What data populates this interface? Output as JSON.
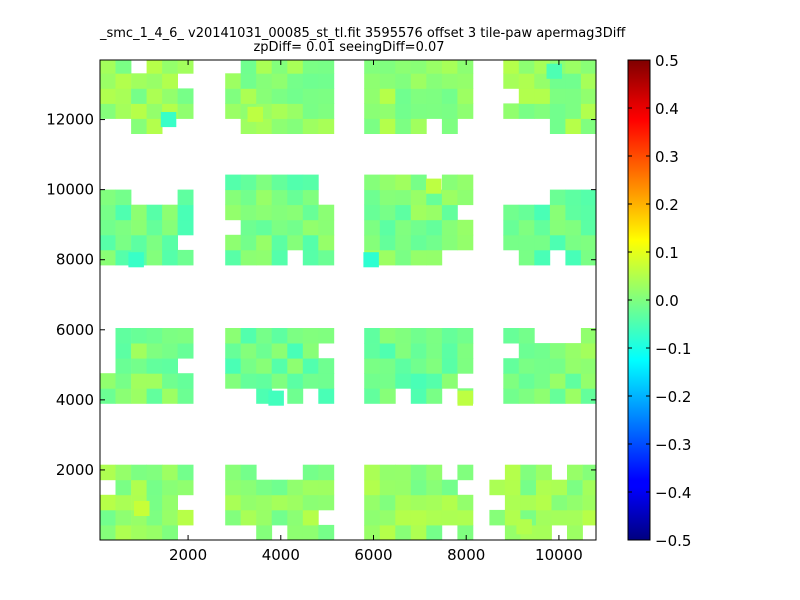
{
  "chart_data": {
    "type": "heatmap",
    "title_line1": "_smc_1_4_6_ v20141031_00085_st_tl.fit 3595576 offset 3 tile-paw apermag3Diff",
    "title_line2": "zpDiff= 0.01 seeingDiff=0.07",
    "xlim": [
      100,
      10800
    ],
    "ylim": [
      0,
      13700
    ],
    "x_ticks": [
      2000,
      4000,
      6000,
      8000,
      10000
    ],
    "y_ticks": [
      2000,
      4000,
      6000,
      8000,
      10000,
      12000
    ],
    "colorbar": {
      "colormap": "jet",
      "vmin": -0.5,
      "vmax": 0.5,
      "ticks": [
        "0.5",
        "0.4",
        "0.3",
        "0.2",
        "0.1",
        "0.0",
        "−0.1",
        "−0.2",
        "−0.3",
        "−0.4",
        "−0.5"
      ]
    },
    "cell_size": [
      335,
      430
    ],
    "grid": false,
    "blocks": [
      {
        "name": "col1-row1",
        "x0": 100,
        "x1": 2110,
        "y0": 0,
        "y1": 2200,
        "base": 0.02
      },
      {
        "name": "col2-row1",
        "x0": 2800,
        "x1": 5140,
        "y0": 0,
        "y1": 2200,
        "base": 0.02
      },
      {
        "name": "col3-row1",
        "x0": 5800,
        "x1": 8140,
        "y0": 0,
        "y1": 2200,
        "base": 0.02
      },
      {
        "name": "col4-row1",
        "x0": 8500,
        "x1": 10800,
        "y0": 0,
        "y1": 2200,
        "base": 0.02
      },
      {
        "name": "col1-row2",
        "x0": 100,
        "x1": 2110,
        "y0": 3900,
        "y1": 6100,
        "base": 0.0
      },
      {
        "name": "col2-row2",
        "x0": 2800,
        "x1": 5140,
        "y0": 3900,
        "y1": 6100,
        "base": -0.02
      },
      {
        "name": "col3-row2",
        "x0": 5800,
        "x1": 8140,
        "y0": 3900,
        "y1": 6100,
        "base": -0.02
      },
      {
        "name": "col4-row2",
        "x0": 8800,
        "x1": 10800,
        "y0": 3900,
        "y1": 6100,
        "base": 0.0
      },
      {
        "name": "col1-row3",
        "x0": 100,
        "x1": 2110,
        "y0": 7850,
        "y1": 9950,
        "base": -0.02
      },
      {
        "name": "col2-row3",
        "x0": 2800,
        "x1": 5140,
        "y0": 7850,
        "y1": 10300,
        "base": -0.01
      },
      {
        "name": "col3-row3",
        "x0": 5800,
        "x1": 8140,
        "y0": 7850,
        "y1": 10300,
        "base": 0.0
      },
      {
        "name": "col4-row3",
        "x0": 8800,
        "x1": 10800,
        "y0": 7850,
        "y1": 9950,
        "base": -0.02
      },
      {
        "name": "col1-row4",
        "x0": 100,
        "x1": 2110,
        "y0": 11600,
        "y1": 13700,
        "base": 0.02
      },
      {
        "name": "col2-row4",
        "x0": 2800,
        "x1": 5140,
        "y0": 11600,
        "y1": 13700,
        "base": 0.01
      },
      {
        "name": "col3-row4",
        "x0": 5800,
        "x1": 8140,
        "y0": 11600,
        "y1": 13700,
        "base": 0.02
      },
      {
        "name": "col4-row4",
        "x0": 8800,
        "x1": 10800,
        "y0": 11600,
        "y1": 13700,
        "base": 0.02
      }
    ],
    "highlights": [
      {
        "x": 1580,
        "y": 12000,
        "value": -0.07
      },
      {
        "x": 880,
        "y": 8000,
        "value": -0.07
      },
      {
        "x": 5950,
        "y": 8000,
        "value": -0.08
      },
      {
        "x": 7300,
        "y": 10100,
        "value": 0.06
      },
      {
        "x": 1000,
        "y": 900,
        "value": 0.07
      },
      {
        "x": 7980,
        "y": 4050,
        "value": 0.06
      },
      {
        "x": 3900,
        "y": 4050,
        "value": -0.06
      },
      {
        "x": 9250,
        "y": 380,
        "value": 0.05
      },
      {
        "x": 9900,
        "y": 13380,
        "value": -0.05
      },
      {
        "x": 3450,
        "y": 12150,
        "value": 0.06
      }
    ]
  }
}
